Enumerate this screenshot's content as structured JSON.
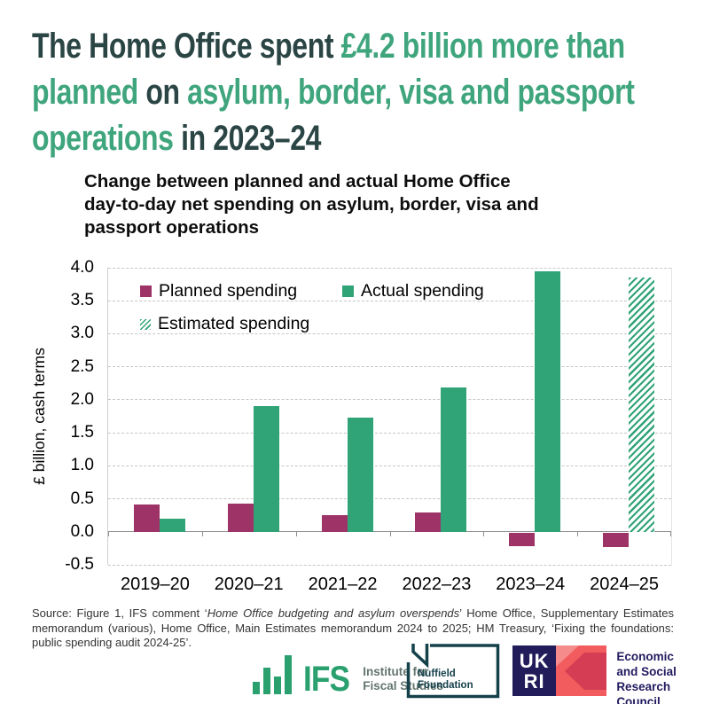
{
  "headline": {
    "dark_color": "#2b4545",
    "accent_color": "#3fa57d",
    "lines": [
      [
        {
          "text": "The Home Office spent ",
          "color": "dark"
        },
        {
          "text": "£4.2 billion more than",
          "color": "green"
        }
      ],
      [
        {
          "text": "planned ",
          "color": "green"
        },
        {
          "text": "on ",
          "color": "dark"
        },
        {
          "text": "asylum, border, visa and passport",
          "color": "green"
        }
      ],
      [
        {
          "text": "operations ",
          "color": "green"
        },
        {
          "text": "in 2023–24",
          "color": "dark"
        }
      ]
    ]
  },
  "chart": {
    "title_lines": [
      "Change between planned and actual Home Office",
      "day-to-day net spending on asylum, border, visa and",
      "passport operations"
    ]
  },
  "chart_data": {
    "type": "bar",
    "title": "Change between planned and actual Home Office day-to-day net spending on asylum, border, visa and passport operations",
    "categories": [
      "2019–20",
      "2020–21",
      "2021–22",
      "2022–23",
      "2023–24",
      "2024–25"
    ],
    "series": [
      {
        "name": "Planned spending",
        "color": "#9d3367",
        "style": "solid",
        "values": [
          0.42,
          0.43,
          0.25,
          0.29,
          -0.2,
          -0.22
        ]
      },
      {
        "name": "Actual spending",
        "color": "#30a377",
        "style": "solid",
        "values": [
          0.2,
          1.9,
          1.73,
          2.18,
          3.95,
          null
        ]
      },
      {
        "name": "Estimated spending",
        "color": "#30a377",
        "style": "hatched",
        "values": [
          null,
          null,
          null,
          null,
          null,
          3.85
        ]
      }
    ],
    "xlabel": "",
    "ylabel": "£ billion, cash terms",
    "ylim": [
      -0.5,
      4.0
    ],
    "ytick_step": 0.5,
    "yticks": [
      "4.0",
      "3.5",
      "3.0",
      "2.5",
      "2.0",
      "1.5",
      "1.0",
      "0.5",
      "0.0",
      "-0.5"
    ],
    "grid": "horizontal dashed",
    "legend_position": "top-left inside plot"
  },
  "source": {
    "parts": [
      {
        "text": "Source: Figure 1, IFS comment ‘",
        "italic": false
      },
      {
        "text": "Home Office budgeting and asylum overspends",
        "italic": true
      },
      {
        "text": "’ Home Office, Supplementary Estimates memorandum (various), Home Office, Main Estimates memorandum 2024 to 2025; HM Treasury, ‘Fixing the foundations: public spending audit 2024-25’.",
        "italic": false
      }
    ]
  },
  "logos": {
    "ifs": {
      "acronym": "IFS",
      "name_line1": "Institute for",
      "name_line2": "Fiscal Studies",
      "green": "#2ba06f"
    },
    "nuffield": {
      "line1": "Nuffield",
      "line2": "Foundation",
      "teal": "#15414b"
    },
    "ukri": {
      "mark_line1": "UK",
      "mark_line2": "RI",
      "org_line1": "Economic",
      "org_line2": "and Social",
      "org_line3": "Research Council",
      "navy": "#221c5a",
      "coral": "#f25c5e",
      "crimson": "#d43d53"
    }
  }
}
